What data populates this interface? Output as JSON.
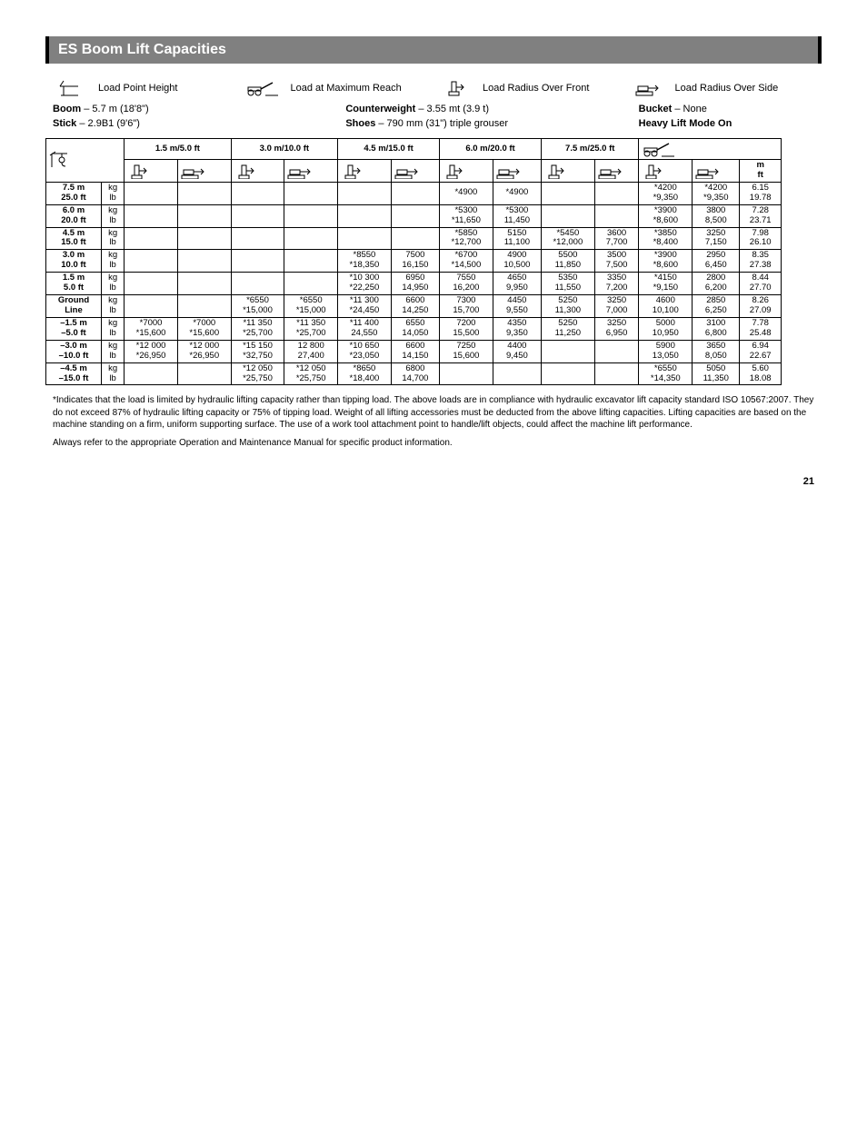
{
  "title": "ES Boom Lift Capacities",
  "legend": {
    "load_point_height": "Load Point Height",
    "load_max_reach": "Load at Maximum Reach",
    "load_radius_front": "Load Radius Over Front",
    "load_radius_side": "Load Radius Over Side"
  },
  "meta": {
    "boom_label": "Boom",
    "boom_value": " – 5.7 m (18'8\")",
    "stick_label": "Stick",
    "stick_value": " – 2.9B1 (9'6\")",
    "cw_label": "Counterweight",
    "cw_value": " – 3.55 mt (3.9 t)",
    "shoes_label": "Shoes",
    "shoes_value": " – 790 mm (31\") triple grouser",
    "bucket_label": "Bucket",
    "bucket_value": " – None",
    "hlm_label": "Heavy Lift Mode On"
  },
  "columns": {
    "c1": "1.5 m/5.0 ft",
    "c2": "3.0 m/10.0 ft",
    "c3": "4.5 m/15.0 ft",
    "c4": "6.0 m/20.0 ft",
    "c5": "7.5 m/25.0 ft",
    "reach_unit": "m\nft"
  },
  "row_labels": {
    "r0": "7.5 m\n25.0 ft",
    "r1": "6.0 m\n20.0 ft",
    "r2": "4.5 m\n15.0 ft",
    "r3": "3.0 m\n10.0 ft",
    "r4": "1.5 m\n5.0 ft",
    "r5": "Ground\nLine",
    "r6": "–1.5 m\n–5.0 ft",
    "r7": "–3.0 m\n–10.0 ft",
    "r8": "–4.5 m\n–15.0 ft"
  },
  "unit_label": "kg\nlb",
  "data": {
    "r0": {
      "c4f": "*4900",
      "c4s": "*4900",
      "mf": "*4200\n*9,350",
      "ms": "*4200\n*9,350",
      "mr": "6.15\n19.78"
    },
    "r1": {
      "c4f": "*5300\n*11,650",
      "c4s": "*5300\n11,450",
      "mf": "*3900\n*8,600",
      "ms": "3800\n8,500",
      "mr": "7.28\n23.71"
    },
    "r2": {
      "c4f": "*5850\n*12,700",
      "c4s": "5150\n11,100",
      "c5f": "*5450\n*12,000",
      "c5s": "3600\n7,700",
      "mf": "*3850\n*8,400",
      "ms": "3250\n7,150",
      "mr": "7.98\n26.10"
    },
    "r3": {
      "c3f": "*8550\n*18,350",
      "c3s": "7500\n16,150",
      "c4f": "*6700\n*14,500",
      "c4s": "4900\n10,500",
      "c5f": "5500\n11,850",
      "c5s": "3500\n7,500",
      "mf": "*3900\n*8,600",
      "ms": "2950\n6,450",
      "mr": "8.35\n27.38"
    },
    "r4": {
      "c3f": "*10 300\n*22,250",
      "c3s": "6950\n14,950",
      "c4f": "7550\n16,200",
      "c4s": "4650\n9,950",
      "c5f": "5350\n11,550",
      "c5s": "3350\n7,200",
      "mf": "*4150\n*9,150",
      "ms": "2800\n6,200",
      "mr": "8.44\n27.70"
    },
    "r5": {
      "c2f": "*6550\n*15,000",
      "c2s": "*6550\n*15,000",
      "c3f": "*11 300\n*24,450",
      "c3s": "6600\n14,250",
      "c4f": "7300\n15,700",
      "c4s": "4450\n9,550",
      "c5f": "5250\n11,300",
      "c5s": "3250\n7,000",
      "mf": "4600\n10,100",
      "ms": "2850\n6,250",
      "mr": "8.26\n27.09"
    },
    "r6": {
      "c1f": "*7000\n*15,600",
      "c1s": "*7000\n*15,600",
      "c2f": "*11 350\n*25,700",
      "c2s": "*11 350\n*25,700",
      "c3f": "*11 400\n24,550",
      "c3s": "6550\n14,050",
      "c4f": "7200\n15,500",
      "c4s": "4350\n9,350",
      "c5f": "5250\n11,250",
      "c5s": "3250\n6,950",
      "mf": "5000\n10,950",
      "ms": "3100\n6,800",
      "mr": "7.78\n25.48"
    },
    "r7": {
      "c1f": "*12 000\n*26,950",
      "c1s": "*12 000\n*26,950",
      "c2f": "*15 150\n*32,750",
      "c2s": "12 800\n27,400",
      "c3f": "*10 650\n*23,050",
      "c3s": "6600\n14,150",
      "c4f": "7250\n15,600",
      "c4s": "4400\n9,450",
      "mf": "5900\n13,050",
      "ms": "3650\n8,050",
      "mr": "6.94\n22.67"
    },
    "r8": {
      "c2f": "*12 050\n*25,750",
      "c2s": "*12 050\n*25,750",
      "c3f": "*8650\n*18,400",
      "c3s": "6800\n14,700",
      "mf": "*6550\n*14,350",
      "ms": "5050\n11,350",
      "mr": "5.60\n18.08"
    }
  },
  "footnotes": {
    "star": "*Indicates that the load is limited by hydraulic lifting capacity rather than tipping load. The above loads are in compliance with hydraulic excavator lift capacity standard ISO 10567:2007. They do not exceed 87% of hydraulic lifting capacity or 75% of tipping load. Weight of all lifting accessories must be deducted from the above lifting capacities. Lifting capacities are based on the machine standing on a firm, uniform supporting surface. The use of a work tool attachment point to handle/lift objects, could affect the machine lift performance.",
    "always": "Always refer to the appropriate Operation and Maintenance Manual for specific product information."
  },
  "page_number": "21",
  "colors": {
    "title_bg": "#808080",
    "text": "#000000",
    "border": "#000000"
  }
}
